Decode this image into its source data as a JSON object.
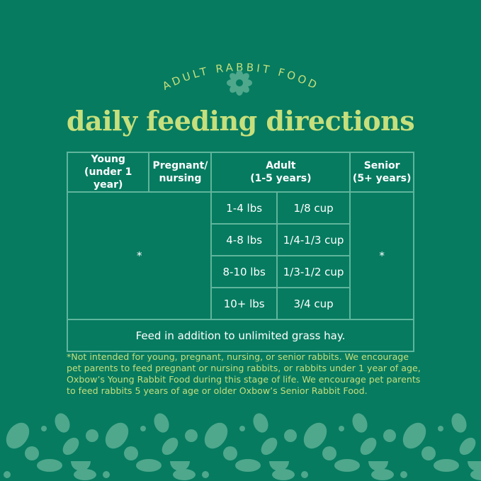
{
  "header": {
    "eyebrow": "ADULT RABBIT FOOD",
    "title": "daily feeding directions",
    "icon": "flower-icon"
  },
  "table": {
    "headers": [
      {
        "line1": "Young",
        "line2": "(under 1 year)"
      },
      {
        "line1": "Pregnant/",
        "line2": "nursing"
      },
      {
        "line1": "Adult",
        "line2": "(1-5 years)"
      },
      {
        "line1": "Senior",
        "line2": "(5+ years)"
      }
    ],
    "young_pregnant_value": "*",
    "senior_value": "*",
    "adult_rows": [
      {
        "weight": "1-4 lbs",
        "amount": "1/8 cup"
      },
      {
        "weight": "4-8 lbs",
        "amount": "1/4-1/3 cup"
      },
      {
        "weight": "8-10 lbs",
        "amount": "1/3-1/2 cup"
      },
      {
        "weight": "10+ lbs",
        "amount": "3/4 cup"
      }
    ],
    "footer": "Feed in addition to unlimited grass hay."
  },
  "footnote": "*Not intended for young, pregnant, nursing, or senior rabbits. We encourage pet parents to feed pregnant or nursing rabbits, or rabbits under 1 year of age, Oxbow’s Young Rabbit Food during this stage of life. We encourage pet parents to feed rabbits 5 years of age or older Oxbow’s Senior Rabbit Food.",
  "colors": {
    "background": "#067b60",
    "accent": "#c6df7c",
    "lines": "#5fb59c",
    "pattern": "#4fa88c"
  }
}
